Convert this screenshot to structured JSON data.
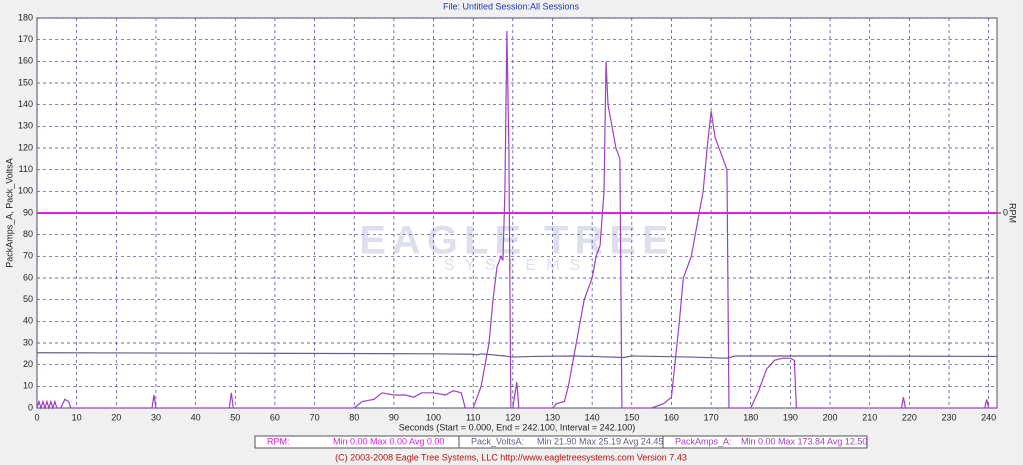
{
  "chart_data": {
    "type": "line",
    "title": "File: Untitled   Session:All Sessions",
    "ylabel": "PackAmps_A, Pack_VoltsA",
    "y2label": "RPM",
    "xlabel": "Seconds (Start = 0.000,  End = 242.100,  Interval =  242.100)",
    "footer": "(C) 2003-2008 Eagle Tree Systems, LLC      http://www.eagletreesystems.com      Version 7.43",
    "watermark": [
      "EAGLE TREE",
      "SYSTEMS"
    ],
    "xlim": [
      0,
      242.1
    ],
    "xticks": [
      0,
      10,
      20,
      30,
      40,
      50,
      60,
      70,
      80,
      90,
      100,
      110,
      120,
      130,
      140,
      150,
      160,
      170,
      180,
      190,
      200,
      210,
      220,
      230,
      240
    ],
    "ylim": [
      0,
      180
    ],
    "yticks": [
      0,
      10,
      20,
      30,
      40,
      50,
      60,
      70,
      80,
      90,
      100,
      110,
      120,
      130,
      140,
      150,
      160,
      170,
      180
    ],
    "y2lim": [
      -1,
      1
    ],
    "y2ticks": [
      0
    ],
    "grid": true,
    "series": [
      {
        "name": "RPM:",
        "stats": "Min 0.00   Max 0.00   Avg 0.00",
        "color": "#e020e0",
        "axis": "y2",
        "x": [
          0,
          242.1
        ],
        "values": [
          0,
          0
        ]
      },
      {
        "name": "Pack_VoltsA:",
        "stats": "Min 21.90   Max 25.19   Avg 24.45",
        "color": "#6a5a8a",
        "x": [
          0,
          50,
          100,
          110,
          111,
          112,
          118,
          120,
          125,
          135,
          140,
          148,
          150,
          165,
          174,
          176,
          185,
          200,
          242.1
        ],
        "values": [
          25.5,
          25.3,
          25,
          24.8,
          24.5,
          25,
          24,
          23.5,
          23.8,
          24,
          23.8,
          23.3,
          24,
          23.5,
          23,
          24,
          24,
          24,
          23.8
        ]
      },
      {
        "name": "PackAmps_A:",
        "stats": "Min 0.00   Max 173.84   Avg 12.50",
        "color": "#a040c0",
        "x": [
          0,
          0.5,
          1,
          1.5,
          2,
          2.5,
          3,
          3.5,
          4,
          4.5,
          5,
          6,
          7,
          8,
          8.5,
          29,
          29.5,
          30,
          48.5,
          49,
          49.5,
          80,
          82,
          85,
          87,
          90,
          93,
          95,
          97,
          100,
          103,
          105,
          107,
          108,
          110,
          112,
          114,
          115,
          116,
          117,
          117.5,
          118,
          118.5,
          119,
          119.5,
          120,
          121,
          121.5,
          130,
          131,
          133,
          134,
          136,
          138,
          140,
          141,
          142,
          143,
          143.5,
          144,
          145,
          146,
          147,
          147.5,
          148,
          155,
          158,
          160,
          162,
          163,
          165,
          166,
          168,
          169,
          170,
          171,
          173,
          174,
          174.5,
          176,
          180,
          182,
          184,
          186,
          188,
          190,
          191,
          191.5,
          218,
          218.5,
          219,
          239,
          239.5,
          240,
          242.1
        ],
        "values": [
          0,
          3,
          0,
          3,
          0,
          3,
          0,
          3,
          0,
          3,
          0,
          0,
          4,
          3,
          0,
          0,
          6,
          0,
          0,
          7,
          0,
          0,
          3,
          4,
          7,
          6,
          6,
          5,
          7,
          7,
          6,
          8,
          7,
          0,
          0,
          10,
          30,
          50,
          65,
          70,
          68,
          100,
          174,
          120,
          0,
          0,
          12,
          0,
          0,
          2,
          3,
          10,
          30,
          50,
          60,
          70,
          75,
          100,
          160,
          140,
          130,
          120,
          115,
          0,
          0,
          0,
          2,
          5,
          40,
          60,
          70,
          80,
          100,
          120,
          137,
          125,
          115,
          110,
          0,
          0,
          0,
          8,
          18,
          22,
          23,
          23,
          22,
          0,
          0,
          5,
          0,
          0,
          4,
          0,
          0
        ]
      }
    ]
  }
}
